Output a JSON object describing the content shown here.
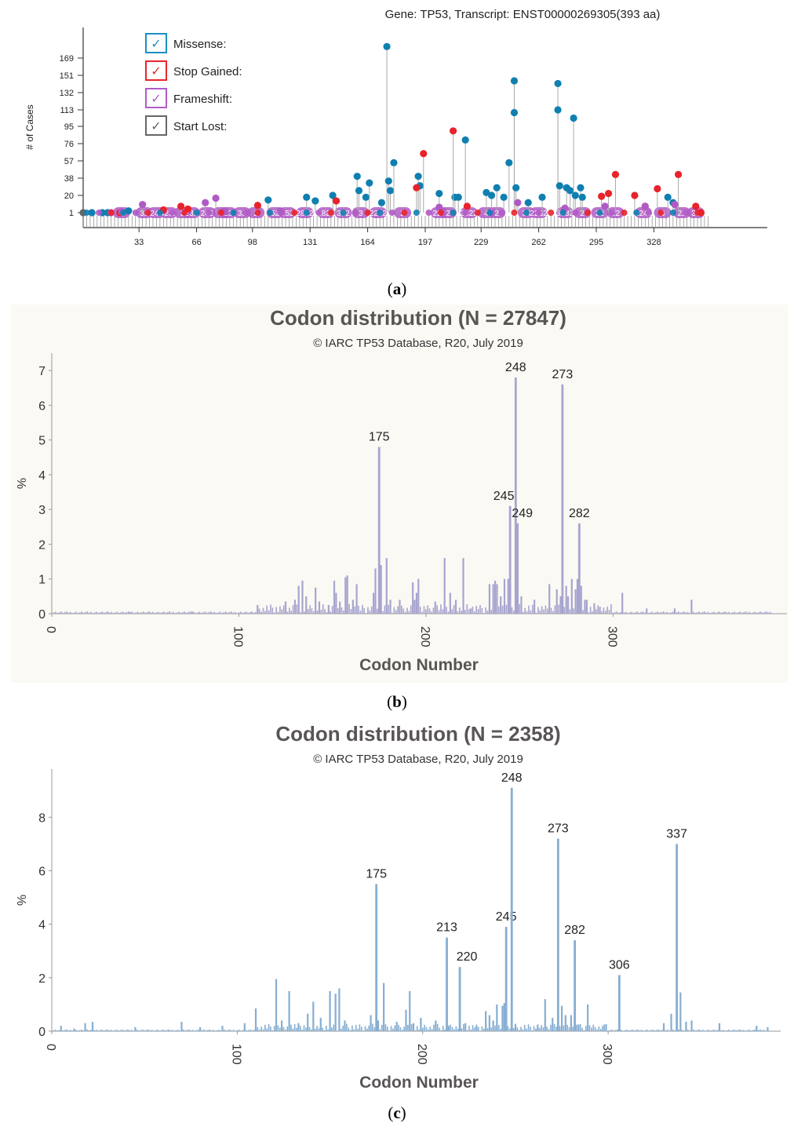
{
  "captions": {
    "a": "a",
    "b": "b",
    "c": "c"
  },
  "panel_a": {
    "title": "Gene: TP53, Transcript: ENST00000269305(393 aa)",
    "ylabel": "# of Cases",
    "yticks": [
      "1",
      "20",
      "38",
      "57",
      "76",
      "95",
      "113",
      "132",
      "151",
      "169"
    ],
    "xticks": [
      "33",
      "66",
      "98",
      "131",
      "164",
      "197",
      "229",
      "262",
      "295",
      "328"
    ],
    "legend": [
      {
        "label": "Missense:",
        "color": "#1a8fc3",
        "check": "✓"
      },
      {
        "label": "Stop Gained:",
        "color": "#e8262a",
        "check": "✓"
      },
      {
        "label": "Frameshift:",
        "color": "#b15cc8",
        "check": "✓"
      },
      {
        "label": "Start Lost:",
        "color": "#666666",
        "check": "✓"
      }
    ],
    "colors": {
      "missense": "#0f7fb0",
      "stop": "#e8232a",
      "frameshift": "#b05ac6",
      "startlost": "#666666"
    }
  },
  "chart_data": [
    {
      "type": "scatter",
      "title": "Gene: TP53, Transcript: ENST00000269305(393 aa)",
      "ylabel": "# of Cases",
      "xlim": [
        1,
        393
      ],
      "ylim": [
        1,
        181
      ],
      "series": [
        {
          "name": "Missense:",
          "points": [
            [
              6,
              1
            ],
            [
              12,
              1
            ],
            [
              15,
              1
            ],
            [
              27,
              3
            ],
            [
              107,
              15
            ],
            [
              129,
              18
            ],
            [
              134,
              14
            ],
            [
              144,
              20
            ],
            [
              158,
              40
            ],
            [
              159,
              25
            ],
            [
              163,
              18
            ],
            [
              165,
              33
            ],
            [
              172,
              12
            ],
            [
              175,
              181
            ],
            [
              176,
              35
            ],
            [
              177,
              25
            ],
            [
              179,
              55
            ],
            [
              193,
              40
            ],
            [
              194,
              30
            ],
            [
              205,
              22
            ],
            [
              214,
              18
            ],
            [
              216,
              18
            ],
            [
              220,
              80
            ],
            [
              232,
              23
            ],
            [
              235,
              20
            ],
            [
              238,
              28
            ],
            [
              242,
              18
            ],
            [
              245,
              55
            ],
            [
              248,
              145
            ],
            [
              248,
              110
            ],
            [
              249,
              28
            ],
            [
              256,
              12
            ],
            [
              264,
              18
            ],
            [
              273,
              142
            ],
            [
              273,
              113
            ],
            [
              274,
              30
            ],
            [
              278,
              28
            ],
            [
              280,
              25
            ],
            [
              282,
              104
            ],
            [
              283,
              20
            ],
            [
              286,
              28
            ],
            [
              287,
              18
            ],
            [
              336,
              18
            ],
            [
              339,
              12
            ]
          ]
        },
        {
          "name": "Stop Gained:",
          "points": [
            [
              22,
              1
            ],
            [
              47,
              4
            ],
            [
              57,
              8
            ],
            [
              61,
              5
            ],
            [
              101,
              9
            ],
            [
              146,
              14
            ],
            [
              192,
              28
            ],
            [
              196,
              65
            ],
            [
              213,
              90
            ],
            [
              221,
              8
            ],
            [
              298,
              19
            ],
            [
              302,
              22
            ],
            [
              306,
              42
            ],
            [
              317,
              20
            ],
            [
              323,
              8
            ],
            [
              330,
              27
            ],
            [
              342,
              42
            ],
            [
              352,
              8
            ],
            [
              355,
              1
            ]
          ]
        },
        {
          "name": "Frameshift:",
          "points": [
            [
              17,
              1
            ],
            [
              23,
              2
            ],
            [
              35,
              10
            ],
            [
              71,
              12
            ],
            [
              77,
              17
            ],
            [
              82,
              2
            ],
            [
              114,
              3
            ],
            [
              205,
              7
            ],
            [
              250,
              12
            ],
            [
              277,
              6
            ],
            [
              300,
              8
            ],
            [
              323,
              8
            ],
            [
              340,
              10
            ]
          ]
        },
        {
          "name": "Start Lost:",
          "points": [
            [
              1,
              1
            ]
          ]
        }
      ]
    },
    {
      "type": "bar",
      "title": "Codon distribution (N = 27847)",
      "subtitle": "© IARC TP53 Database, R20, July 2019",
      "xlabel": "Codon Number",
      "ylabel": "%",
      "xlim": [
        0,
        393
      ],
      "ylim": [
        0,
        7.5
      ],
      "xticks": [
        "0",
        "100",
        "200",
        "300"
      ],
      "yticks": [
        "0",
        "1",
        "2",
        "3",
        "4",
        "5",
        "6",
        "7"
      ],
      "labeled_bars": [
        {
          "codon": 175,
          "value": 4.8,
          "label": "175"
        },
        {
          "codon": 245,
          "value": 3.1,
          "label": "245"
        },
        {
          "codon": 248,
          "value": 6.8,
          "label": "248"
        },
        {
          "codon": 249,
          "value": 2.6,
          "label": "249"
        },
        {
          "codon": 273,
          "value": 6.6,
          "label": "273"
        },
        {
          "codon": 282,
          "value": 2.6,
          "label": "282"
        }
      ],
      "other_bars": [
        [
          42,
          0.05
        ],
        [
          75,
          0.06
        ],
        [
          110,
          0.25
        ],
        [
          125,
          0.35
        ],
        [
          130,
          0.4
        ],
        [
          132,
          0.8
        ],
        [
          134,
          0.95
        ],
        [
          136,
          0.5
        ],
        [
          141,
          0.75
        ],
        [
          143,
          0.35
        ],
        [
          148,
          0.25
        ],
        [
          151,
          0.95
        ],
        [
          152,
          0.6
        ],
        [
          154,
          0.35
        ],
        [
          157,
          1.05
        ],
        [
          158,
          1.1
        ],
        [
          161,
          0.4
        ],
        [
          163,
          0.85
        ],
        [
          172,
          0.6
        ],
        [
          173,
          1.3
        ],
        [
          176,
          1.4
        ],
        [
          179,
          1.6
        ],
        [
          181,
          0.4
        ],
        [
          186,
          0.4
        ],
        [
          193,
          0.9
        ],
        [
          194,
          0.4
        ],
        [
          195,
          0.6
        ],
        [
          196,
          1.0
        ],
        [
          205,
          0.35
        ],
        [
          210,
          1.6
        ],
        [
          213,
          0.6
        ],
        [
          216,
          0.4
        ],
        [
          220,
          1.6
        ],
        [
          224,
          0.15
        ],
        [
          234,
          0.85
        ],
        [
          236,
          0.85
        ],
        [
          237,
          0.95
        ],
        [
          238,
          0.85
        ],
        [
          240,
          0.5
        ],
        [
          242,
          1.0
        ],
        [
          244,
          1.0
        ],
        [
          251,
          0.5
        ],
        [
          258,
          0.4
        ],
        [
          266,
          0.85
        ],
        [
          270,
          0.7
        ],
        [
          272,
          0.5
        ],
        [
          275,
          0.8
        ],
        [
          276,
          0.5
        ],
        [
          278,
          1.0
        ],
        [
          280,
          0.7
        ],
        [
          281,
          1.0
        ],
        [
          283,
          0.8
        ],
        [
          285,
          0.4
        ],
        [
          286,
          0.4
        ],
        [
          290,
          0.3
        ],
        [
          293,
          0.2
        ],
        [
          305,
          0.6
        ],
        [
          318,
          0.15
        ],
        [
          333,
          0.15
        ],
        [
          342,
          0.4
        ]
      ]
    },
    {
      "type": "bar",
      "title": "Codon distribution (N = 2358)",
      "subtitle": "© IARC TP53 Database, R20, July 2019",
      "xlabel": "Codon Number",
      "ylabel": "%",
      "xlim": [
        0,
        393
      ],
      "ylim": [
        0,
        9.8
      ],
      "xticks": [
        "0",
        "100",
        "200",
        "300"
      ],
      "yticks": [
        "0",
        "2",
        "4",
        "6",
        "8"
      ],
      "labeled_bars": [
        {
          "codon": 175,
          "value": 5.5,
          "label": "175"
        },
        {
          "codon": 213,
          "value": 3.5,
          "label": "213"
        },
        {
          "codon": 220,
          "value": 2.4,
          "label": "220"
        },
        {
          "codon": 245,
          "value": 3.9,
          "label": "245"
        },
        {
          "codon": 248,
          "value": 9.1,
          "label": "248"
        },
        {
          "codon": 273,
          "value": 7.2,
          "label": "273"
        },
        {
          "codon": 282,
          "value": 3.4,
          "label": "282"
        },
        {
          "codon": 306,
          "value": 2.1,
          "label": "306"
        },
        {
          "codon": 337,
          "value": 7.0,
          "label": "337"
        }
      ],
      "other_bars": [
        [
          5,
          0.2
        ],
        [
          12,
          0.1
        ],
        [
          18,
          0.3
        ],
        [
          22,
          0.35
        ],
        [
          45,
          0.15
        ],
        [
          70,
          0.35
        ],
        [
          80,
          0.15
        ],
        [
          92,
          0.2
        ],
        [
          104,
          0.3
        ],
        [
          110,
          0.85
        ],
        [
          121,
          1.95
        ],
        [
          124,
          0.4
        ],
        [
          128,
          1.5
        ],
        [
          133,
          0.3
        ],
        [
          138,
          0.65
        ],
        [
          141,
          1.1
        ],
        [
          145,
          0.5
        ],
        [
          150,
          1.5
        ],
        [
          153,
          1.4
        ],
        [
          155,
          1.6
        ],
        [
          158,
          0.4
        ],
        [
          172,
          0.6
        ],
        [
          176,
          0.4
        ],
        [
          179,
          1.8
        ],
        [
          186,
          0.35
        ],
        [
          191,
          0.8
        ],
        [
          193,
          1.5
        ],
        [
          195,
          0.3
        ],
        [
          199,
          0.5
        ],
        [
          207,
          0.4
        ],
        [
          214,
          0.2
        ],
        [
          223,
          0.3
        ],
        [
          229,
          0.2
        ],
        [
          234,
          0.75
        ],
        [
          236,
          0.6
        ],
        [
          238,
          0.4
        ],
        [
          240,
          1.0
        ],
        [
          243,
          0.95
        ],
        [
          244,
          1.05
        ],
        [
          250,
          0.25
        ],
        [
          262,
          0.25
        ],
        [
          266,
          1.2
        ],
        [
          270,
          0.5
        ],
        [
          275,
          0.95
        ],
        [
          277,
          0.6
        ],
        [
          280,
          0.6
        ],
        [
          284,
          0.25
        ],
        [
          289,
          1.0
        ],
        [
          298,
          0.25
        ],
        [
          330,
          0.3
        ],
        [
          334,
          0.65
        ],
        [
          339,
          1.45
        ],
        [
          342,
          0.35
        ],
        [
          345,
          0.4
        ],
        [
          360,
          0.3
        ],
        [
          380,
          0.2
        ],
        [
          386,
          0.15
        ]
      ]
    }
  ]
}
